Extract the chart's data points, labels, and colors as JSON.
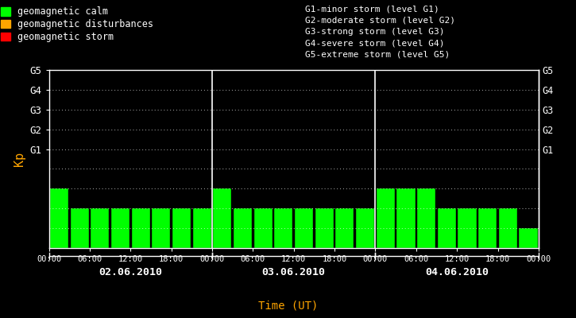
{
  "background_color": "#000000",
  "plot_bg_color": "#000000",
  "bar_color_calm": "#00ff00",
  "bar_color_disturbance": "#ffa500",
  "bar_color_storm": "#ff0000",
  "text_color": "#ffffff",
  "orange_color": "#ffa500",
  "ylabel": "Kp",
  "xlabel": "Time (UT)",
  "ylim": [
    0,
    9
  ],
  "yticks": [
    0,
    1,
    2,
    3,
    4,
    5,
    6,
    7,
    8,
    9
  ],
  "right_labels": [
    "G1",
    "G2",
    "G3",
    "G4",
    "G5"
  ],
  "right_label_yticks": [
    5,
    6,
    7,
    8,
    9
  ],
  "days": [
    "02.06.2010",
    "03.06.2010",
    "04.06.2010"
  ],
  "kp_values": [
    3,
    2,
    2,
    2,
    2,
    2,
    2,
    2,
    3,
    2,
    2,
    2,
    2,
    2,
    2,
    2,
    3,
    3,
    3,
    2,
    2,
    2,
    2,
    1
  ],
  "legend_items": [
    {
      "label": "geomagnetic calm",
      "color": "#00ff00"
    },
    {
      "label": "geomagnetic disturbances",
      "color": "#ffa500"
    },
    {
      "label": "geomagnetic storm",
      "color": "#ff0000"
    }
  ],
  "storm_legend_lines": [
    "G1-minor storm (level G1)",
    "G2-moderate storm (level G2)",
    "G3-strong storm (level G3)",
    "G4-severe storm (level G4)",
    "G5-extreme storm (level G5)"
  ],
  "time_labels": [
    "00:00",
    "06:00",
    "12:00",
    "18:00",
    "00:00",
    "06:00",
    "12:00",
    "18:00",
    "00:00",
    "06:00",
    "12:00",
    "18:00",
    "00:00"
  ],
  "figsize": [
    7.25,
    4.0
  ],
  "dpi": 100
}
